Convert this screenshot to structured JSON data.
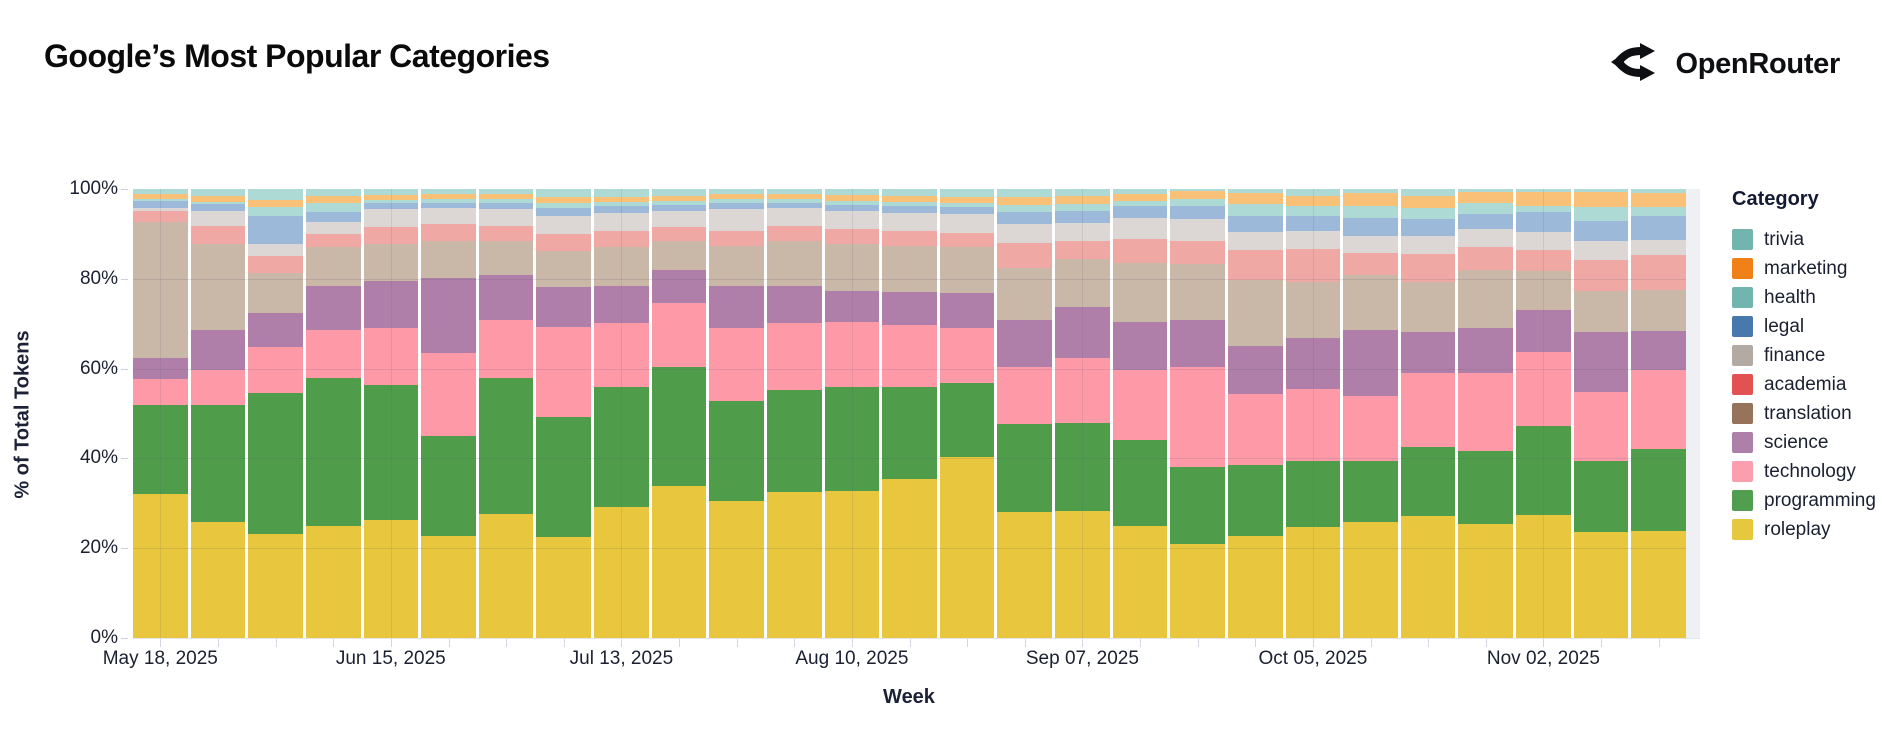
{
  "header": {
    "title": "Google’s Most Popular Categories",
    "brand": "OpenRouter"
  },
  "chart_data": {
    "type": "bar",
    "stacked": true,
    "normalized": true,
    "title": "Google’s Most Popular Categories",
    "xlabel": "Week",
    "ylabel": "% of Total Tokens",
    "ylim": [
      0,
      100
    ],
    "y_ticks": [
      0,
      20,
      40,
      60,
      80,
      100
    ],
    "grid": true,
    "legend_position": "right",
    "legend_title": "Category",
    "legend_order": [
      "trivia",
      "marketing",
      "health",
      "legal",
      "finance",
      "academia",
      "translation",
      "science",
      "technology",
      "programming",
      "roleplay"
    ],
    "categories": [
      "May 18, 2025",
      "May 25, 2025",
      "Jun 01, 2025",
      "Jun 08, 2025",
      "Jun 15, 2025",
      "Jun 22, 2025",
      "Jun 29, 2025",
      "Jul 06, 2025",
      "Jul 13, 2025",
      "Jul 20, 2025",
      "Jul 27, 2025",
      "Aug 03, 2025",
      "Aug 10, 2025",
      "Aug 17, 2025",
      "Aug 24, 2025",
      "Aug 31, 2025",
      "Sep 07, 2025",
      "Sep 14, 2025",
      "Sep 21, 2025",
      "Sep 28, 2025",
      "Oct 05, 2025",
      "Oct 12, 2025",
      "Oct 19, 2025",
      "Oct 26, 2025",
      "Nov 02, 2025",
      "Nov 09, 2025",
      "Nov 16, 2025"
    ],
    "x_tick_label_indices": [
      0,
      4,
      8,
      12,
      16,
      20,
      24
    ],
    "series": [
      {
        "name": "roleplay",
        "legend_color": "#e5c83d",
        "bar_color": "#e8c63e",
        "values": [
          32.1,
          25.9,
          23.2,
          25.0,
          26.3,
          22.8,
          27.7,
          22.6,
          29.2,
          33.8,
          30.5,
          32.5,
          32.7,
          35.4,
          40.3,
          28.1,
          28.3,
          25.0,
          21.0,
          22.8,
          24.8,
          25.9,
          27.2,
          25.4,
          27.4,
          23.7,
          23.9
        ]
      },
      {
        "name": "programming",
        "legend_color": "#519e50",
        "bar_color": "#4f9d4b",
        "values": [
          19.9,
          26.1,
          31.4,
          33.0,
          30.1,
          22.1,
          30.3,
          26.7,
          26.6,
          26.6,
          22.2,
          22.8,
          23.1,
          20.4,
          16.6,
          19.5,
          19.7,
          19.2,
          17.1,
          15.7,
          14.6,
          13.5,
          15.3,
          16.2,
          19.9,
          15.7,
          18.1
        ]
      },
      {
        "name": "technology",
        "legend_color": "#fb9fae",
        "bar_color": "#fe9aa8",
        "values": [
          5.7,
          7.7,
          10.2,
          10.6,
          12.6,
          18.6,
          12.8,
          19.9,
          14.3,
          14.2,
          16.3,
          14.8,
          14.6,
          13.9,
          12.1,
          12.8,
          14.4,
          15.5,
          22.3,
          15.9,
          16.1,
          14.4,
          16.6,
          17.5,
          16.4,
          15.5,
          17.7
        ]
      },
      {
        "name": "science",
        "legend_color": "#ae7fa9",
        "bar_color": "#b07fa9",
        "values": [
          4.7,
          8.9,
          7.5,
          9.9,
          10.6,
          16.6,
          10.0,
          8.9,
          8.4,
          7.3,
          9.5,
          8.4,
          7.0,
          7.3,
          7.8,
          10.4,
          11.3,
          10.7,
          10.4,
          10.6,
          11.4,
          14.8,
          9.0,
          9.9,
          9.3,
          13.2,
          8.7
        ]
      },
      {
        "name": "translation",
        "legend_color": "#97735c",
        "bar_color": "#c9b7a7",
        "values": [
          30.3,
          19.2,
          9.1,
          8.7,
          8.2,
          8.4,
          7.7,
          8.2,
          8.5,
          6.6,
          8.9,
          10.0,
          10.4,
          10.4,
          10.2,
          11.7,
          10.8,
          13.2,
          12.6,
          14.8,
          12.5,
          12.2,
          11.1,
          13.0,
          8.7,
          9.2,
          9.1
        ]
      },
      {
        "name": "academia",
        "legend_color": "#e25252",
        "bar_color": "#efa8a3",
        "values": [
          2.4,
          4.0,
          3.8,
          2.9,
          3.8,
          3.8,
          3.3,
          3.7,
          3.7,
          3.1,
          3.3,
          3.3,
          3.4,
          3.3,
          3.3,
          5.6,
          4.0,
          5.3,
          5.1,
          6.6,
          7.3,
          5.0,
          6.4,
          5.0,
          4.7,
          6.9,
          7.8
        ]
      },
      {
        "name": "finance",
        "legend_color": "#b3aba3",
        "bar_color": "#dcd7d4",
        "values": [
          0.6,
          3.3,
          2.6,
          2.6,
          4.0,
          3.5,
          3.8,
          4.0,
          4.0,
          3.5,
          4.9,
          4.0,
          3.9,
          4.0,
          4.2,
          4.2,
          4.0,
          4.7,
          4.9,
          4.0,
          4.0,
          3.8,
          4.0,
          4.0,
          4.1,
          4.2,
          3.3
        ]
      },
      {
        "name": "legal",
        "legend_color": "#4879ad",
        "bar_color": "#9db9d9",
        "values": [
          1.6,
          1.6,
          6.2,
          2.2,
          1.3,
          1.2,
          1.3,
          1.8,
          1.5,
          1.4,
          1.3,
          1.2,
          1.4,
          1.5,
          1.5,
          2.6,
          2.6,
          2.6,
          2.9,
          3.7,
          3.2,
          4.0,
          3.8,
          3.5,
          4.4,
          4.6,
          5.5
        ]
      },
      {
        "name": "health",
        "legend_color": "#72b5ae",
        "bar_color": "#aedad5",
        "values": [
          0.4,
          0.5,
          2.0,
          2.0,
          0.7,
          0.8,
          0.8,
          1.0,
          0.9,
          0.8,
          0.8,
          0.8,
          0.9,
          0.9,
          1.0,
          1.6,
          1.5,
          1.2,
          1.5,
          2.6,
          2.4,
          2.6,
          2.4,
          2.3,
          1.4,
          3.1,
          2.0
        ]
      },
      {
        "name": "marketing",
        "legend_color": "#f08119",
        "bar_color": "#f9c077",
        "values": [
          1.1,
          1.2,
          1.6,
          1.6,
          1.1,
          1.0,
          1.1,
          1.4,
          1.2,
          1.2,
          1.1,
          1.1,
          1.2,
          1.3,
          1.3,
          1.8,
          1.8,
          1.4,
          1.7,
          2.5,
          2.2,
          2.9,
          2.7,
          2.5,
          3.1,
          3.3,
          3.1
        ]
      },
      {
        "name": "trivia",
        "legend_color": "#72b5ae",
        "bar_color": "#aedad5",
        "values": [
          1.2,
          1.6,
          2.4,
          1.5,
          1.3,
          1.2,
          1.2,
          1.8,
          1.7,
          1.5,
          1.2,
          1.1,
          1.4,
          1.6,
          1.7,
          1.7,
          1.6,
          1.2,
          0.5,
          0.8,
          1.5,
          0.9,
          1.5,
          0.7,
          0.6,
          0.6,
          0.8
        ]
      }
    ]
  }
}
